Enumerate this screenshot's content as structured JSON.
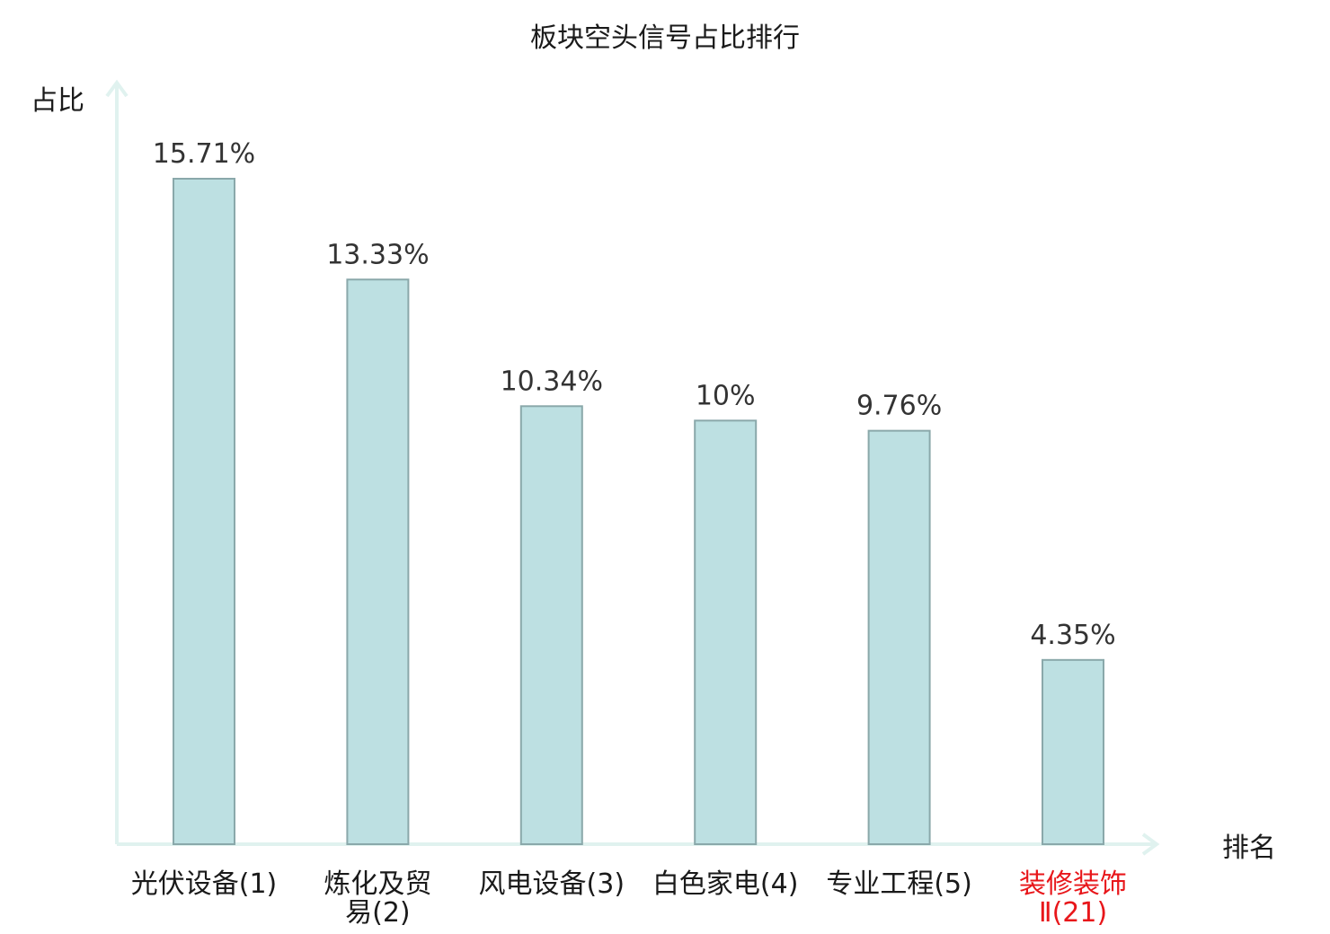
{
  "chart_data": {
    "type": "bar",
    "title": "板块空头信号占比排行",
    "ylabel": "占比",
    "xlabel": "排名",
    "unit": "%",
    "ylim": [
      0,
      17
    ],
    "grid": false,
    "categories": [
      {
        "lines": [
          "光伏设备(1)"
        ],
        "highlight": false
      },
      {
        "lines": [
          "炼化及贸",
          "易(2)"
        ],
        "highlight": false
      },
      {
        "lines": [
          "风电设备(3)"
        ],
        "highlight": false
      },
      {
        "lines": [
          "白色家电(4)"
        ],
        "highlight": false
      },
      {
        "lines": [
          "专业工程(5)"
        ],
        "highlight": false
      },
      {
        "lines": [
          "装修装饰",
          "Ⅱ(21)"
        ],
        "highlight": true
      }
    ],
    "values": [
      15.71,
      13.33,
      10.34,
      10,
      9.76,
      4.35
    ],
    "value_labels": [
      "15.71%",
      "13.33%",
      "10.34%",
      "10%",
      "9.76%",
      "4.35%"
    ],
    "colors": {
      "bar_fill": "#bde0e2",
      "bar_stroke": "#8aa8aa",
      "axis": "#e0f2ef",
      "highlight_text": "#e8161a",
      "normal_text": "#1a1a1a"
    }
  }
}
